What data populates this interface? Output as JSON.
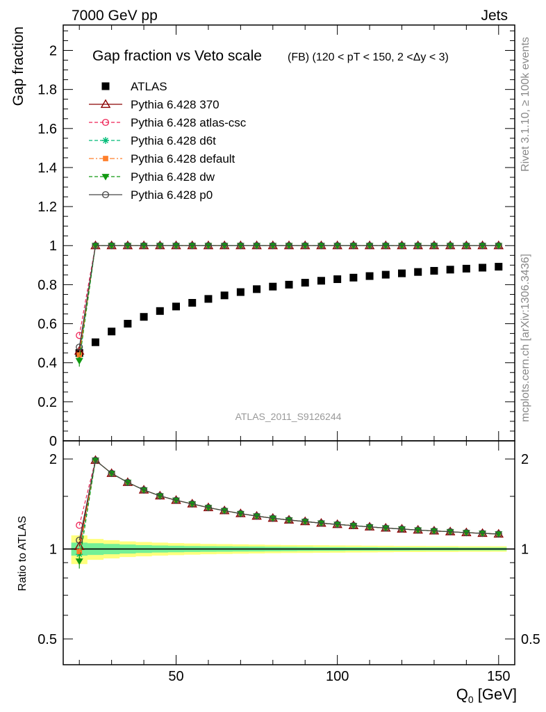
{
  "header": {
    "left": "7000 GeV pp",
    "right": "Jets"
  },
  "side_labels": {
    "rivet": "Rivet 3.1.10, ≥ 100k events",
    "mcplots": "mcplots.cern.ch [arXiv:1306.3436]"
  },
  "chart_data": [
    {
      "type": "scatter",
      "panel": "main",
      "title": "Gap fraction vs Veto scale",
      "subtitle": "(FB) (120 < pT < 150, 2 <Δy < 3)",
      "ylabel": "Gap fraction",
      "watermark": "ATLAS_2011_S9126244",
      "xlim": [
        15,
        155
      ],
      "ylim": [
        0,
        2.13
      ],
      "yticks": [
        0,
        0.2,
        0.4,
        0.6,
        0.8,
        1,
        1.2,
        1.4,
        1.6,
        1.8,
        2
      ],
      "ytick_labels": [
        "0",
        "0.2",
        "0.4",
        "0.6",
        "0.8",
        "1",
        "1.2",
        "1.4",
        "1.6",
        "1.8",
        "2"
      ],
      "x": [
        20,
        25,
        30,
        35,
        40,
        45,
        50,
        55,
        60,
        65,
        70,
        75,
        80,
        85,
        90,
        95,
        100,
        105,
        110,
        115,
        120,
        125,
        130,
        135,
        140,
        145,
        150
      ],
      "legend": [
        {
          "label": "ATLAS",
          "color": "#000000",
          "marker": "square",
          "line": "none"
        },
        {
          "label": "Pythia 6.428 370",
          "color": "#8b0000",
          "marker": "triangle-open",
          "line": "solid"
        },
        {
          "label": "Pythia 6.428 atlas-csc",
          "color": "#ee2255",
          "marker": "circle-open",
          "line": "dashed"
        },
        {
          "label": "Pythia 6.428 d6t",
          "color": "#00bb77",
          "marker": "star",
          "line": "dashed"
        },
        {
          "label": "Pythia 6.428 default",
          "color": "#ff7f2a",
          "marker": "square-small",
          "line": "dashdot"
        },
        {
          "label": "Pythia 6.428 dw",
          "color": "#119911",
          "marker": "triangle-down",
          "line": "dashed"
        },
        {
          "label": "Pythia 6.428 p0",
          "color": "#444444",
          "marker": "circle-open",
          "line": "solid"
        }
      ],
      "series": [
        {
          "name": "ATLAS",
          "values": [
            0.45,
            0.505,
            0.56,
            0.6,
            0.635,
            0.665,
            0.688,
            0.707,
            0.727,
            0.745,
            0.762,
            0.777,
            0.79,
            0.8,
            0.81,
            0.82,
            0.828,
            0.836,
            0.844,
            0.851,
            0.858,
            0.865,
            0.871,
            0.877,
            0.882,
            0.887,
            0.892
          ]
        },
        {
          "name": "Pythia 6.428 370",
          "values": [
            0.46,
            1,
            1,
            1,
            1,
            1,
            1,
            1,
            1,
            1,
            1,
            1,
            1,
            1,
            1,
            1,
            1,
            1,
            1,
            1,
            1,
            1,
            1,
            1,
            1,
            1,
            1
          ]
        },
        {
          "name": "Pythia 6.428 atlas-csc",
          "values": [
            0.54,
            1,
            1,
            1,
            1,
            1,
            1,
            1,
            1,
            1,
            1,
            1,
            1,
            1,
            1,
            1,
            1,
            1,
            1,
            1,
            1,
            1,
            1,
            1,
            1,
            1,
            1
          ]
        },
        {
          "name": "Pythia 6.428 d6t",
          "values": [
            0.43,
            1,
            1,
            1,
            1,
            1,
            1,
            1,
            1,
            1,
            1,
            1,
            1,
            1,
            1,
            1,
            1,
            1,
            1,
            1,
            1,
            1,
            1,
            1,
            1,
            1,
            1
          ]
        },
        {
          "name": "Pythia 6.428 default",
          "values": [
            0.44,
            1,
            1,
            1,
            1,
            1,
            1,
            1,
            1,
            1,
            1,
            1,
            1,
            1,
            1,
            1,
            1,
            1,
            1,
            1,
            1,
            1,
            1,
            1,
            1,
            1,
            1
          ]
        },
        {
          "name": "Pythia 6.428 dw",
          "values": [
            0.41,
            1,
            1,
            1,
            1,
            1,
            1,
            1,
            1,
            1,
            1,
            1,
            1,
            1,
            1,
            1,
            1,
            1,
            1,
            1,
            1,
            1,
            1,
            1,
            1,
            1,
            1
          ]
        },
        {
          "name": "Pythia 6.428 p0",
          "values": [
            0.48,
            1,
            1,
            1,
            1,
            1,
            1,
            1,
            1,
            1,
            1,
            1,
            1,
            1,
            1,
            1,
            1,
            1,
            1,
            1,
            1,
            1,
            1,
            1,
            1,
            1,
            1
          ]
        }
      ]
    },
    {
      "type": "scatter",
      "panel": "ratio",
      "ylabel": "Ratio to ATLAS",
      "xlabel": "Q",
      "xlabel_sub": "0",
      "xlabel_unit": " [GeV]",
      "xlim": [
        15,
        155
      ],
      "ylim": [
        0.41,
        2.3
      ],
      "log_y": true,
      "xticks": [
        50,
        100,
        150
      ],
      "xtick_labels": [
        "50",
        "100",
        "150"
      ],
      "yticks": [
        0.5,
        1,
        2
      ],
      "ytick_labels": [
        "0.5",
        "1",
        "2"
      ],
      "band_inner": [
        0.05,
        0.045,
        0.04,
        0.035,
        0.03,
        0.027,
        0.025,
        0.023,
        0.022,
        0.021,
        0.02,
        0.019,
        0.018,
        0.017,
        0.016,
        0.015,
        0.015,
        0.014,
        0.014,
        0.013,
        0.013,
        0.012,
        0.012,
        0.012,
        0.011,
        0.011,
        0.011
      ],
      "band_outer": [
        0.11,
        0.08,
        0.07,
        0.06,
        0.055,
        0.05,
        0.046,
        0.043,
        0.04,
        0.038,
        0.036,
        0.034,
        0.032,
        0.031,
        0.03,
        0.029,
        0.028,
        0.027,
        0.026,
        0.025,
        0.024,
        0.024,
        0.023,
        0.023,
        0.022,
        0.022,
        0.021
      ],
      "series": [
        {
          "name": "Pythia 6.428 370",
          "values": [
            1.02,
            1.98,
            1.79,
            1.67,
            1.575,
            1.505,
            1.455,
            1.415,
            1.375,
            1.343,
            1.313,
            1.288,
            1.267,
            1.25,
            1.235,
            1.22,
            1.208,
            1.197,
            1.185,
            1.175,
            1.166,
            1.157,
            1.149,
            1.142,
            1.134,
            1.128,
            1.122
          ]
        },
        {
          "name": "Pythia 6.428 atlas-csc",
          "values": [
            1.2,
            1.98,
            1.79,
            1.67,
            1.575,
            1.505,
            1.455,
            1.415,
            1.375,
            1.343,
            1.313,
            1.288,
            1.267,
            1.25,
            1.235,
            1.22,
            1.208,
            1.197,
            1.185,
            1.175,
            1.166,
            1.157,
            1.149,
            1.142,
            1.134,
            1.128,
            1.122
          ]
        },
        {
          "name": "Pythia 6.428 d6t",
          "values": [
            0.96,
            1.98,
            1.79,
            1.67,
            1.575,
            1.505,
            1.455,
            1.415,
            1.375,
            1.343,
            1.313,
            1.288,
            1.267,
            1.25,
            1.235,
            1.22,
            1.208,
            1.197,
            1.185,
            1.175,
            1.166,
            1.157,
            1.149,
            1.142,
            1.134,
            1.128,
            1.122
          ]
        },
        {
          "name": "Pythia 6.428 default",
          "values": [
            0.98,
            1.98,
            1.79,
            1.67,
            1.575,
            1.505,
            1.455,
            1.415,
            1.375,
            1.343,
            1.313,
            1.288,
            1.267,
            1.25,
            1.235,
            1.22,
            1.208,
            1.197,
            1.185,
            1.175,
            1.166,
            1.157,
            1.149,
            1.142,
            1.134,
            1.128,
            1.122
          ]
        },
        {
          "name": "Pythia 6.428 dw",
          "values": [
            0.91,
            1.98,
            1.79,
            1.67,
            1.575,
            1.505,
            1.455,
            1.415,
            1.375,
            1.343,
            1.313,
            1.288,
            1.267,
            1.25,
            1.235,
            1.22,
            1.208,
            1.197,
            1.185,
            1.175,
            1.166,
            1.157,
            1.149,
            1.142,
            1.134,
            1.128,
            1.122
          ]
        },
        {
          "name": "Pythia 6.428 p0",
          "values": [
            1.07,
            1.98,
            1.79,
            1.67,
            1.575,
            1.505,
            1.455,
            1.415,
            1.375,
            1.343,
            1.313,
            1.288,
            1.267,
            1.25,
            1.235,
            1.22,
            1.208,
            1.197,
            1.185,
            1.175,
            1.166,
            1.157,
            1.149,
            1.142,
            1.134,
            1.128,
            1.122
          ]
        }
      ]
    }
  ]
}
